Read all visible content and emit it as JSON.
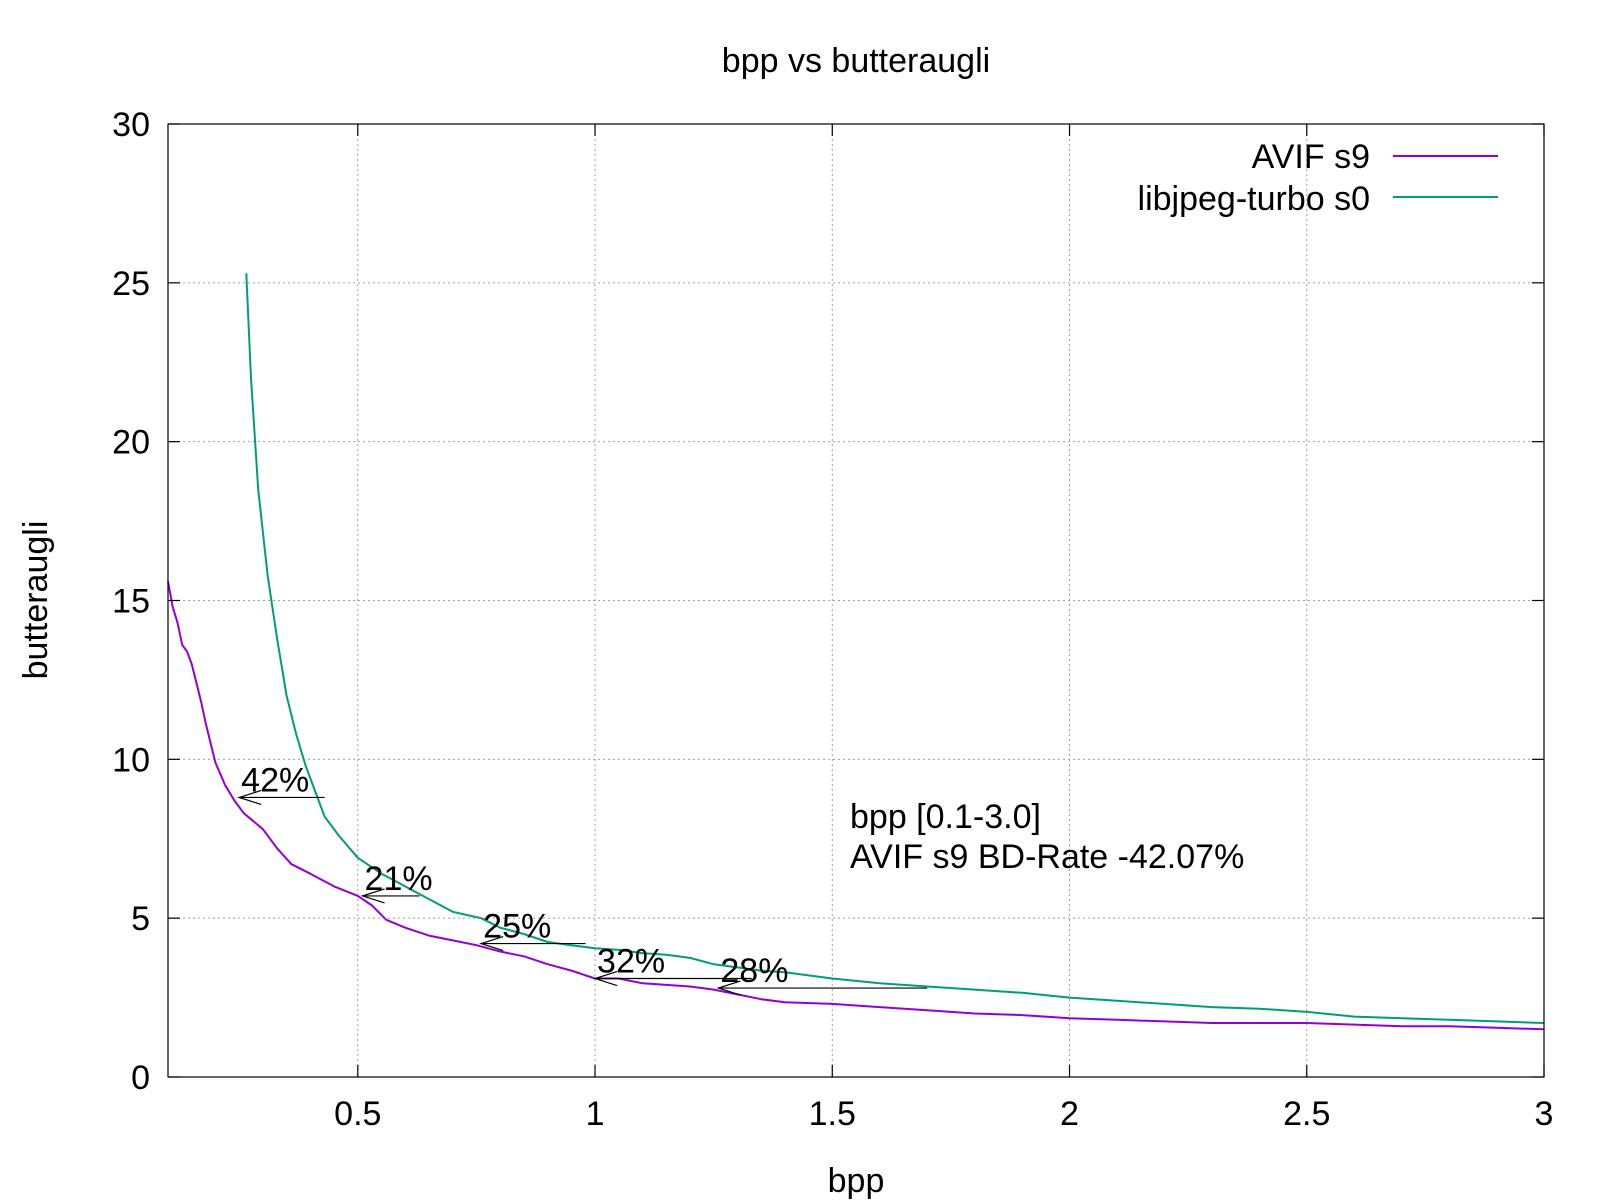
{
  "chart_data": {
    "type": "line",
    "title": "bpp vs butteraugli",
    "xlabel": "bpp",
    "ylabel": "butteraugli",
    "xlim": [
      0.1,
      3.0
    ],
    "ylim": [
      0,
      30
    ],
    "x_ticks": [
      0.5,
      1,
      1.5,
      2,
      2.5,
      3
    ],
    "x_tick_labels": [
      "0.5",
      "1",
      "1.5",
      "2",
      "2.5",
      "3"
    ],
    "y_ticks": [
      0,
      5,
      10,
      15,
      20,
      25,
      30
    ],
    "y_tick_labels": [
      "0",
      "5",
      "10",
      "15",
      "20",
      "25",
      "30"
    ],
    "grid": true,
    "legend_position": "top-right",
    "series": [
      {
        "name": "AVIF s9",
        "color": "#9400d3",
        "points": [
          [
            0.1,
            15.6
          ],
          [
            0.11,
            14.8
          ],
          [
            0.12,
            14.3
          ],
          [
            0.13,
            13.6
          ],
          [
            0.14,
            13.4
          ],
          [
            0.15,
            13.0
          ],
          [
            0.16,
            12.4
          ],
          [
            0.17,
            11.8
          ],
          [
            0.18,
            11.1
          ],
          [
            0.2,
            9.9
          ],
          [
            0.22,
            9.2
          ],
          [
            0.24,
            8.7
          ],
          [
            0.26,
            8.3
          ],
          [
            0.3,
            7.8
          ],
          [
            0.33,
            7.2
          ],
          [
            0.36,
            6.7
          ],
          [
            0.4,
            6.4
          ],
          [
            0.45,
            6.0
          ],
          [
            0.5,
            5.7
          ],
          [
            0.53,
            5.4
          ],
          [
            0.56,
            4.95
          ],
          [
            0.6,
            4.7
          ],
          [
            0.65,
            4.45
          ],
          [
            0.7,
            4.3
          ],
          [
            0.75,
            4.15
          ],
          [
            0.8,
            3.95
          ],
          [
            0.85,
            3.8
          ],
          [
            0.9,
            3.55
          ],
          [
            0.95,
            3.35
          ],
          [
            1.0,
            3.1
          ],
          [
            1.05,
            3.1
          ],
          [
            1.1,
            2.95
          ],
          [
            1.15,
            2.9
          ],
          [
            1.2,
            2.85
          ],
          [
            1.25,
            2.75
          ],
          [
            1.3,
            2.6
          ],
          [
            1.35,
            2.45
          ],
          [
            1.4,
            2.35
          ],
          [
            1.5,
            2.3
          ],
          [
            1.6,
            2.2
          ],
          [
            1.7,
            2.1
          ],
          [
            1.8,
            2.0
          ],
          [
            1.9,
            1.95
          ],
          [
            2.0,
            1.85
          ],
          [
            2.1,
            1.8
          ],
          [
            2.2,
            1.75
          ],
          [
            2.3,
            1.7
          ],
          [
            2.4,
            1.7
          ],
          [
            2.5,
            1.7
          ],
          [
            2.6,
            1.65
          ],
          [
            2.7,
            1.6
          ],
          [
            2.8,
            1.6
          ],
          [
            2.9,
            1.55
          ],
          [
            3.0,
            1.5
          ]
        ]
      },
      {
        "name": "libjpeg-turbo s0",
        "color": "#009e73",
        "points": [
          [
            0.265,
            25.3
          ],
          [
            0.275,
            22.0
          ],
          [
            0.29,
            18.5
          ],
          [
            0.31,
            15.8
          ],
          [
            0.33,
            13.8
          ],
          [
            0.35,
            12.0
          ],
          [
            0.37,
            10.8
          ],
          [
            0.39,
            9.8
          ],
          [
            0.41,
            9.0
          ],
          [
            0.43,
            8.2
          ],
          [
            0.46,
            7.6
          ],
          [
            0.5,
            6.9
          ],
          [
            0.55,
            6.4
          ],
          [
            0.6,
            6.0
          ],
          [
            0.65,
            5.6
          ],
          [
            0.7,
            5.2
          ],
          [
            0.73,
            5.1
          ],
          [
            0.76,
            5.0
          ],
          [
            0.8,
            4.7
          ],
          [
            0.85,
            4.5
          ],
          [
            0.9,
            4.25
          ],
          [
            0.95,
            4.15
          ],
          [
            1.0,
            4.05
          ],
          [
            1.05,
            4.0
          ],
          [
            1.1,
            3.9
          ],
          [
            1.15,
            3.85
          ],
          [
            1.2,
            3.75
          ],
          [
            1.25,
            3.55
          ],
          [
            1.3,
            3.45
          ],
          [
            1.35,
            3.35
          ],
          [
            1.4,
            3.3
          ],
          [
            1.5,
            3.1
          ],
          [
            1.6,
            2.95
          ],
          [
            1.7,
            2.85
          ],
          [
            1.8,
            2.75
          ],
          [
            1.9,
            2.65
          ],
          [
            2.0,
            2.5
          ],
          [
            2.1,
            2.4
          ],
          [
            2.2,
            2.3
          ],
          [
            2.3,
            2.2
          ],
          [
            2.4,
            2.15
          ],
          [
            2.5,
            2.05
          ],
          [
            2.6,
            1.9
          ],
          [
            2.7,
            1.85
          ],
          [
            2.8,
            1.8
          ],
          [
            2.9,
            1.75
          ],
          [
            3.0,
            1.7
          ]
        ]
      }
    ],
    "annotations": [
      {
        "label": "42%",
        "y": 8.8,
        "from_x": 0.43,
        "to_x": 0.25
      },
      {
        "label": "21%",
        "y": 5.7,
        "from_x": 0.63,
        "to_x": 0.51
      },
      {
        "label": "25%",
        "y": 4.2,
        "from_x": 0.98,
        "to_x": 0.76
      },
      {
        "label": "32%",
        "y": 3.1,
        "from_x": 1.33,
        "to_x": 1.0
      },
      {
        "label": "28%",
        "y": 2.8,
        "from_x": 1.7,
        "to_x": 1.26
      }
    ],
    "info_text": {
      "color": "#00ee00",
      "lines": [
        "bpp [0.1-3.0]",
        "AVIF s9 BD-Rate -42.07%"
      ]
    }
  }
}
